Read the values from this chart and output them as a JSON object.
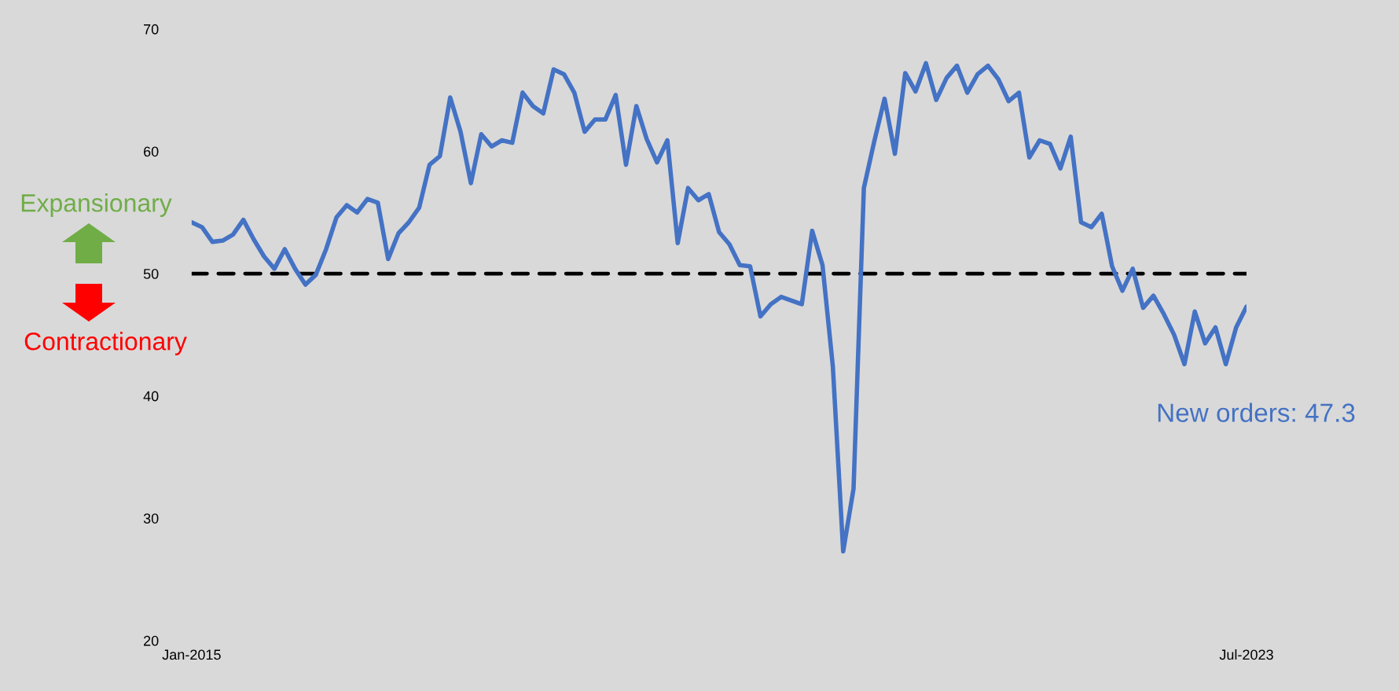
{
  "chart_data": {
    "type": "line",
    "categories": [
      "Jan-2015",
      null,
      null,
      null,
      null,
      null,
      null,
      null,
      null,
      null,
      null,
      null,
      null,
      null,
      null,
      null,
      null,
      null,
      null,
      null,
      null,
      null,
      null,
      null,
      null,
      null,
      null,
      null,
      null,
      null,
      null,
      null,
      null,
      null,
      null,
      null,
      null,
      null,
      null,
      null,
      null,
      null,
      null,
      null,
      null,
      null,
      null,
      null,
      null,
      null,
      null,
      null,
      null,
      null,
      null,
      null,
      null,
      null,
      null,
      null,
      null,
      null,
      null,
      null,
      null,
      null,
      null,
      null,
      null,
      null,
      null,
      null,
      null,
      null,
      null,
      null,
      null,
      null,
      null,
      null,
      null,
      null,
      null,
      null,
      null,
      null,
      null,
      null,
      null,
      null,
      null,
      null,
      null,
      null,
      null,
      null,
      null,
      null,
      null,
      null,
      null,
      null,
      "Jul-2023"
    ],
    "series": [
      {
        "color": "#4472c4",
        "values": [
          54.2,
          53.8,
          52.6,
          52.7,
          53.2,
          54.4,
          52.8,
          51.4,
          50.4,
          52.0,
          50.4,
          49.1,
          49.9,
          52.0,
          54.6,
          55.6,
          55.0,
          56.1,
          55.8,
          51.2,
          53.3,
          54.2,
          55.4,
          58.9,
          59.6,
          64.4,
          61.6,
          57.4,
          61.4,
          60.4,
          60.9,
          60.7,
          64.8,
          63.7,
          63.1,
          66.7,
          66.3,
          64.8,
          61.6,
          62.6,
          62.6,
          64.6,
          58.9,
          63.7,
          61.0,
          59.1,
          60.9,
          52.5,
          57.0,
          56.0,
          56.5,
          53.4,
          52.4,
          50.7,
          50.6,
          46.5,
          47.5,
          48.1,
          47.8,
          47.5,
          53.5,
          50.7,
          42.4,
          27.3,
          32.4,
          57.0,
          60.8,
          64.3,
          59.8,
          66.4,
          64.9,
          67.2,
          64.2,
          66.0,
          67.0,
          64.8,
          66.3,
          67.0,
          65.9,
          64.1,
          64.8,
          59.5,
          60.9,
          60.6,
          58.6,
          61.2,
          54.2,
          53.8,
          54.9,
          50.6,
          48.6,
          50.4,
          47.2,
          48.2,
          46.7,
          45.0,
          42.6,
          46.9,
          44.3,
          45.6,
          42.6,
          45.6,
          47.3
        ]
      }
    ],
    "ylim": [
      20,
      70
    ],
    "yticks": [
      20,
      30,
      40,
      50,
      60,
      70
    ],
    "ref_lines": [
      {
        "axis": "y",
        "value": 50,
        "color": "#000000",
        "line_style": "dashed"
      }
    ],
    "annotations": [
      "Expansionary",
      "Contractionary",
      "New orders: 47.3"
    ],
    "grid": false,
    "legend": false,
    "marker": "none",
    "line_style": "solid"
  }
}
